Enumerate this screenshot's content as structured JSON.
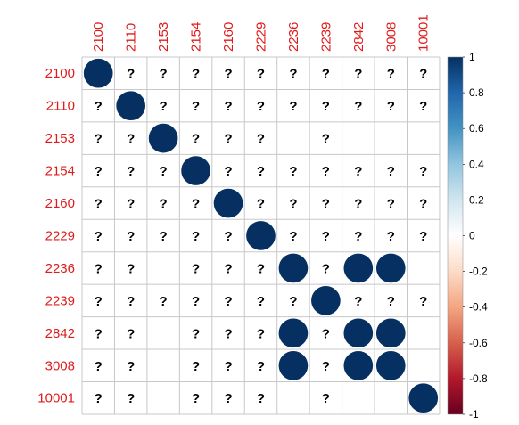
{
  "chart_data": {
    "type": "heatmap",
    "method": "circle",
    "labels": [
      "2100",
      "2110",
      "2153",
      "2154",
      "2160",
      "2229",
      "2236",
      "2239",
      "2842",
      "3008",
      "10001"
    ],
    "missing_marker": "?",
    "cells": [
      [
        "1",
        "?",
        "?",
        "?",
        "?",
        "?",
        "?",
        "?",
        "?",
        "?",
        "?"
      ],
      [
        "?",
        "1",
        "?",
        "?",
        "?",
        "?",
        "?",
        "?",
        "?",
        "?",
        "?"
      ],
      [
        "?",
        "?",
        "1",
        "?",
        "?",
        "?",
        "0",
        "?",
        "0",
        "0",
        "0"
      ],
      [
        "?",
        "?",
        "?",
        "1",
        "?",
        "?",
        "?",
        "?",
        "?",
        "?",
        "?"
      ],
      [
        "?",
        "?",
        "?",
        "?",
        "1",
        "?",
        "?",
        "?",
        "?",
        "?",
        "?"
      ],
      [
        "?",
        "?",
        "?",
        "?",
        "?",
        "1",
        "?",
        "?",
        "?",
        "?",
        "?"
      ],
      [
        "?",
        "?",
        "0",
        "?",
        "?",
        "?",
        "1",
        "?",
        "1",
        "1",
        "0"
      ],
      [
        "?",
        "?",
        "?",
        "?",
        "?",
        "?",
        "?",
        "1",
        "?",
        "?",
        "?"
      ],
      [
        "?",
        "?",
        "0",
        "?",
        "?",
        "?",
        "1",
        "?",
        "1",
        "1",
        "0"
      ],
      [
        "?",
        "?",
        "0",
        "?",
        "?",
        "?",
        "1",
        "?",
        "1",
        "1",
        "0"
      ],
      [
        "?",
        "?",
        "0",
        "?",
        "?",
        "?",
        "0",
        "?",
        "0",
        "0",
        "1"
      ]
    ],
    "colorbar": {
      "range": [
        -1,
        1
      ],
      "ticks": [
        "1",
        "0.8",
        "0.6",
        "0.4",
        "0.2",
        "0",
        "-0.2",
        "-0.4",
        "-0.6",
        "-0.8",
        "-1"
      ],
      "colors": [
        "#053061",
        "#2166ac",
        "#4393c3",
        "#92c5de",
        "#d1e5f0",
        "#ffffff",
        "#fddbc7",
        "#f4a582",
        "#d6604d",
        "#b2182b",
        "#67001f"
      ]
    },
    "label_color": "#e01b1b",
    "grid": true
  }
}
